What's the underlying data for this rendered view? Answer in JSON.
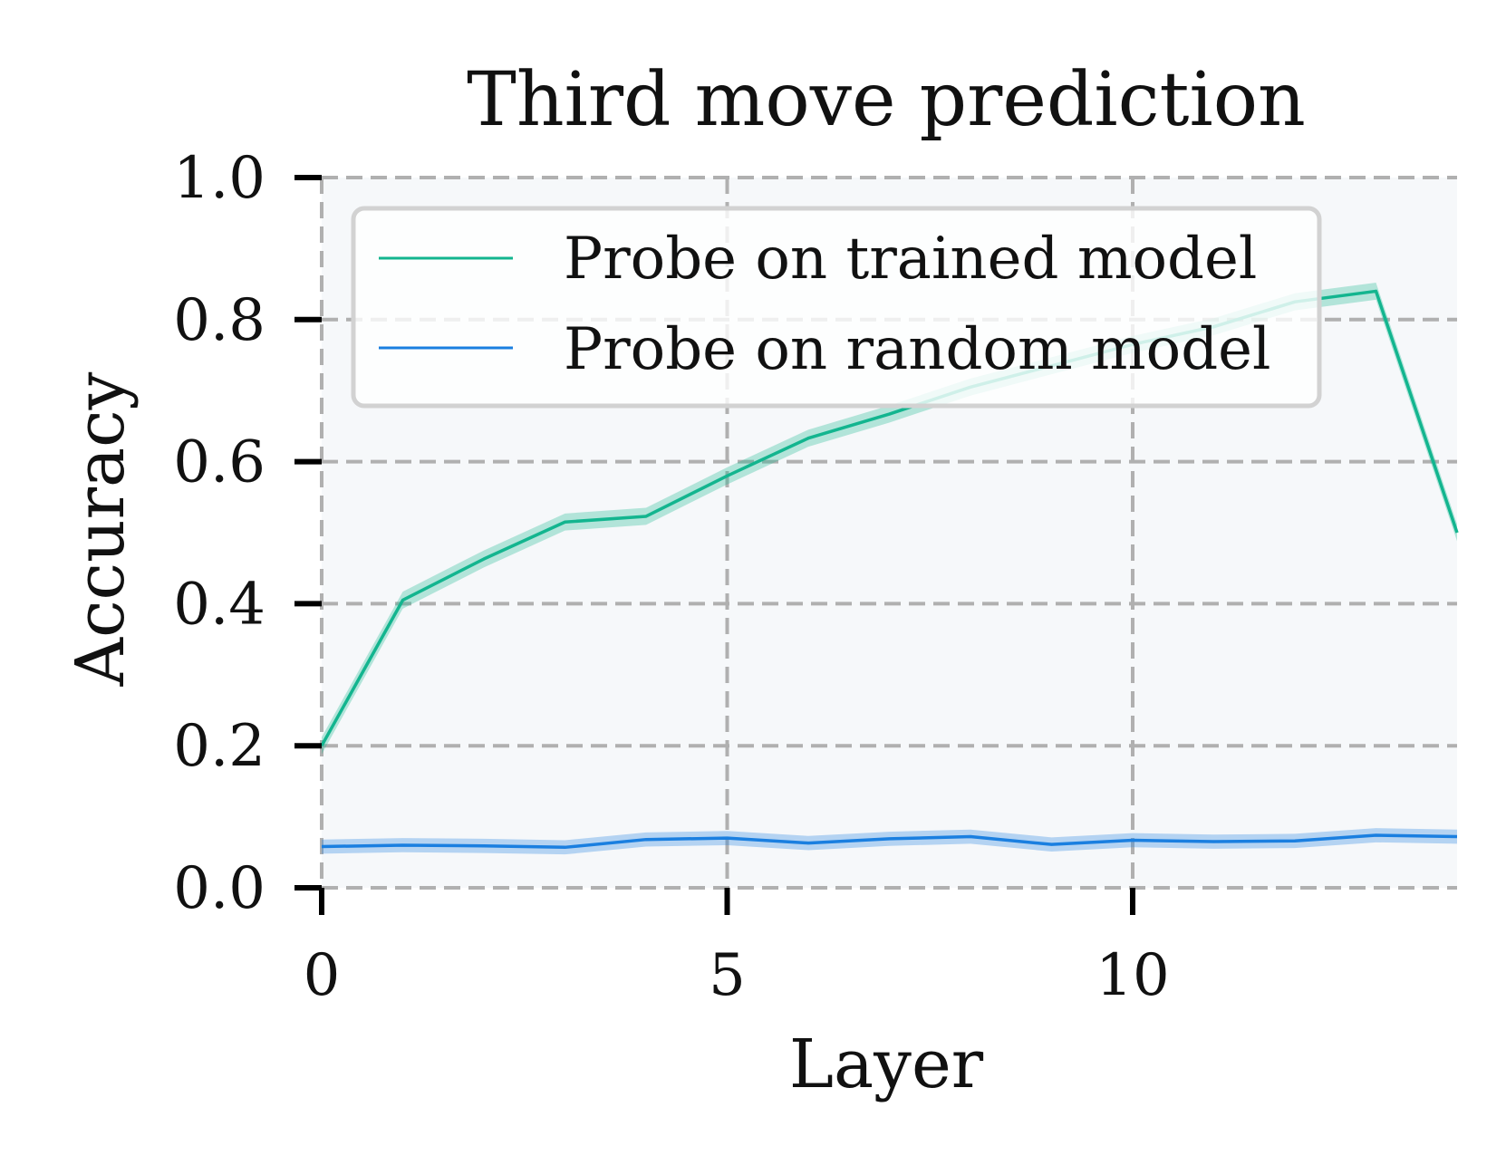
{
  "chart_data": {
    "type": "line",
    "title": "Third move prediction",
    "xlabel": "Layer",
    "ylabel": "Accuracy",
    "xlim": [
      0,
      14
    ],
    "ylim": [
      0.0,
      1.0
    ],
    "xticks": [
      0,
      5,
      10
    ],
    "xtick_labels": [
      "0",
      "5",
      "10"
    ],
    "yticks": [
      0.0,
      0.2,
      0.4,
      0.6,
      0.8,
      1.0
    ],
    "ytick_labels": [
      "0.0",
      "0.2",
      "0.4",
      "0.6",
      "0.8",
      "1.0"
    ],
    "grid": true,
    "legend_position": "top-left",
    "x": [
      0,
      1,
      2,
      3,
      4,
      5,
      6,
      7,
      8,
      9,
      10,
      11,
      12,
      13,
      14
    ],
    "series": [
      {
        "name": "Probe on trained model",
        "color": "#13b58f",
        "values": [
          0.2,
          0.405,
          0.463,
          0.515,
          0.523,
          0.58,
          0.633,
          0.667,
          0.705,
          0.735,
          0.765,
          0.79,
          0.825,
          0.84,
          0.5
        ],
        "band": 0.012
      },
      {
        "name": "Probe on random model",
        "color": "#1a7fe0",
        "values": [
          0.058,
          0.06,
          0.059,
          0.057,
          0.068,
          0.07,
          0.063,
          0.069,
          0.072,
          0.061,
          0.067,
          0.065,
          0.066,
          0.074,
          0.072
        ],
        "band": 0.01
      }
    ]
  }
}
